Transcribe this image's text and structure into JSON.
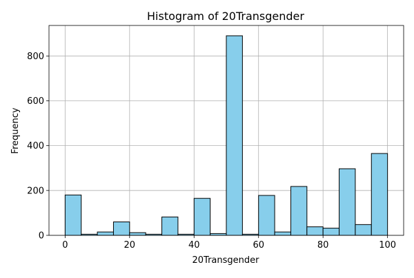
{
  "chart_data": {
    "type": "bar",
    "title": "Histogram of 20Transgender",
    "xlabel": "20Transgender",
    "ylabel": "Frequency",
    "xlim": [
      -5,
      105
    ],
    "ylim": [
      0,
      936
    ],
    "xticks": [
      "0",
      "20",
      "40",
      "60",
      "80",
      "100"
    ],
    "yticks": [
      "0",
      "200",
      "400",
      "600",
      "800"
    ],
    "grid": true,
    "colors": {
      "bar_fill": "#87CEEB",
      "bar_edge": "#000000",
      "grid": "#b0b0b0"
    },
    "bins": [
      {
        "x0": 0,
        "x1": 5,
        "count": 180
      },
      {
        "x0": 5,
        "x1": 10,
        "count": 5
      },
      {
        "x0": 10,
        "x1": 15,
        "count": 15
      },
      {
        "x0": 15,
        "x1": 20,
        "count": 60
      },
      {
        "x0": 20,
        "x1": 25,
        "count": 12
      },
      {
        "x0": 25,
        "x1": 30,
        "count": 5
      },
      {
        "x0": 30,
        "x1": 35,
        "count": 82
      },
      {
        "x0": 35,
        "x1": 40,
        "count": 5
      },
      {
        "x0": 40,
        "x1": 45,
        "count": 165
      },
      {
        "x0": 45,
        "x1": 50,
        "count": 8
      },
      {
        "x0": 50,
        "x1": 55,
        "count": 890
      },
      {
        "x0": 55,
        "x1": 60,
        "count": 5
      },
      {
        "x0": 60,
        "x1": 65,
        "count": 178
      },
      {
        "x0": 65,
        "x1": 70,
        "count": 15
      },
      {
        "x0": 70,
        "x1": 75,
        "count": 218
      },
      {
        "x0": 75,
        "x1": 80,
        "count": 38
      },
      {
        "x0": 80,
        "x1": 85,
        "count": 32
      },
      {
        "x0": 85,
        "x1": 90,
        "count": 297
      },
      {
        "x0": 90,
        "x1": 95,
        "count": 48
      },
      {
        "x0": 95,
        "x1": 100,
        "count": 365
      }
    ]
  }
}
